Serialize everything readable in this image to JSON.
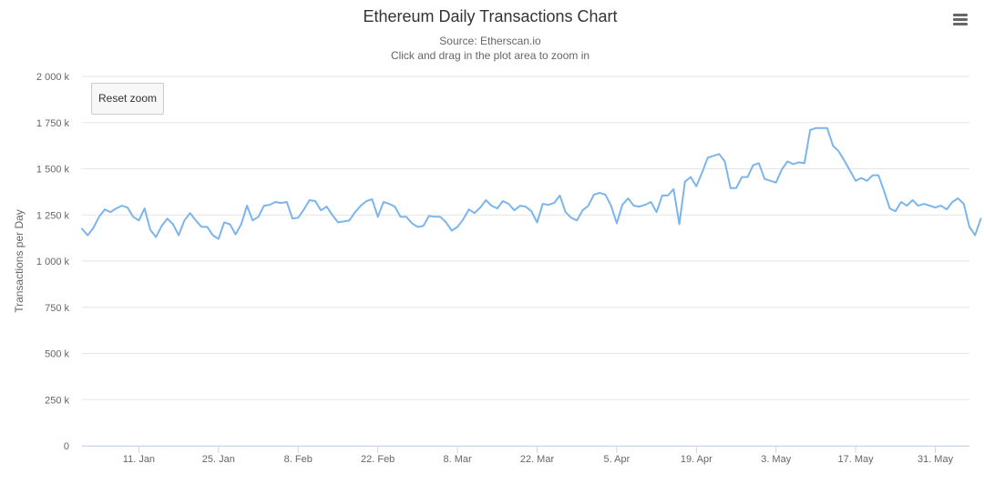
{
  "menu": {
    "icon": "hamburger-menu-icon"
  },
  "controls": {
    "reset_zoom_label": "Reset zoom"
  },
  "chart_data": {
    "type": "line",
    "title": "Ethereum Daily Transactions Chart",
    "subtitle": "Source: Etherscan.io",
    "subtitle2": "Click and drag in the plot area to zoom in",
    "xlabel": "",
    "ylabel": "Transactions per Day",
    "ylim": [
      0,
      2000000
    ],
    "yticks": [
      0,
      250000,
      500000,
      750000,
      1000000,
      1250000,
      1500000,
      1750000,
      2000000
    ],
    "ytick_labels": [
      "0",
      "250 k",
      "500 k",
      "750 k",
      "1 000 k",
      "1 250 k",
      "1 500 k",
      "1 750 k",
      "2 000 k"
    ],
    "x_start": "2018-01-01",
    "xlim": [
      "2018-01-01",
      "2018-06-06"
    ],
    "xticks": [
      "2018-01-11",
      "2018-01-25",
      "2018-02-08",
      "2018-02-22",
      "2018-03-08",
      "2018-03-22",
      "2018-04-05",
      "2018-04-19",
      "2018-05-03",
      "2018-05-17",
      "2018-05-31"
    ],
    "xtick_labels": [
      "11. Jan",
      "25. Jan",
      "8. Feb",
      "22. Feb",
      "8. Mar",
      "22. Mar",
      "5. Apr",
      "19. Apr",
      "3. May",
      "17. May",
      "31. May"
    ],
    "grid": true,
    "legend": "none",
    "series_color": "#7cb5ec",
    "series": [
      {
        "name": "",
        "values": [
          1175000,
          1140000,
          1180000,
          1240000,
          1280000,
          1265000,
          1285000,
          1300000,
          1290000,
          1240000,
          1220000,
          1285000,
          1170000,
          1130000,
          1190000,
          1230000,
          1200000,
          1140000,
          1220000,
          1260000,
          1220000,
          1185000,
          1185000,
          1140000,
          1120000,
          1210000,
          1200000,
          1145000,
          1200000,
          1300000,
          1220000,
          1240000,
          1300000,
          1305000,
          1320000,
          1315000,
          1320000,
          1230000,
          1235000,
          1280000,
          1330000,
          1325000,
          1275000,
          1295000,
          1250000,
          1210000,
          1215000,
          1220000,
          1265000,
          1300000,
          1325000,
          1335000,
          1240000,
          1320000,
          1310000,
          1295000,
          1240000,
          1240000,
          1205000,
          1185000,
          1190000,
          1245000,
          1240000,
          1240000,
          1210000,
          1165000,
          1185000,
          1225000,
          1280000,
          1260000,
          1290000,
          1330000,
          1300000,
          1285000,
          1325000,
          1310000,
          1275000,
          1300000,
          1295000,
          1270000,
          1210000,
          1310000,
          1305000,
          1315000,
          1355000,
          1265000,
          1235000,
          1220000,
          1275000,
          1300000,
          1360000,
          1370000,
          1360000,
          1300000,
          1205000,
          1305000,
          1340000,
          1300000,
          1295000,
          1305000,
          1320000,
          1265000,
          1355000,
          1355000,
          1390000,
          1200000,
          1430000,
          1455000,
          1405000,
          1480000,
          1560000,
          1570000,
          1580000,
          1540000,
          1395000,
          1395000,
          1455000,
          1455000,
          1520000,
          1530000,
          1445000,
          1435000,
          1425000,
          1495000,
          1540000,
          1525000,
          1535000,
          1530000,
          1710000,
          1720000,
          1720000,
          1720000,
          1625000,
          1595000,
          1545000,
          1490000,
          1435000,
          1450000,
          1435000,
          1465000,
          1465000,
          1380000,
          1285000,
          1270000,
          1320000,
          1300000,
          1330000,
          1300000,
          1310000,
          1300000,
          1290000,
          1300000,
          1280000,
          1320000,
          1340000,
          1310000,
          1185000,
          1140000,
          1230000
        ]
      }
    ]
  }
}
